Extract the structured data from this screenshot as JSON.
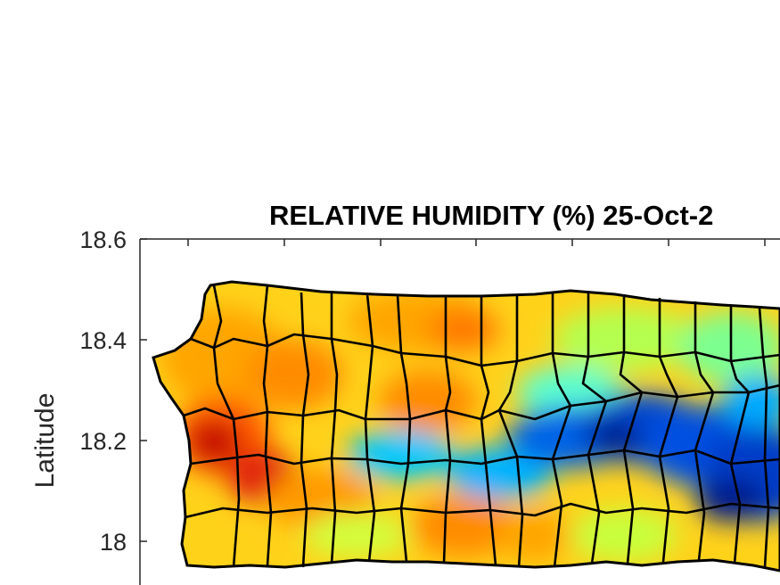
{
  "figure": {
    "title": "RELATIVE HUMIDITY (%) 25-Oct-2",
    "ylabel": "Latitude",
    "y_ticks": [
      "18.6",
      "18.4",
      "18.2",
      "18"
    ]
  },
  "map": {
    "region": "Puerto Rico",
    "overlay": "municipality boundaries",
    "colormap": [
      "#7f0000",
      "#d7191c",
      "#ff6a00",
      "#ffa500",
      "#ffe600",
      "#c8ff3c",
      "#5cffb0",
      "#00e5ff",
      "#0096ff",
      "#0046e6",
      "#001a8c"
    ],
    "pattern": "drier (red/orange) over the west and north-central areas; moister (blue) band along the central mountains, broadening eastward"
  }
}
